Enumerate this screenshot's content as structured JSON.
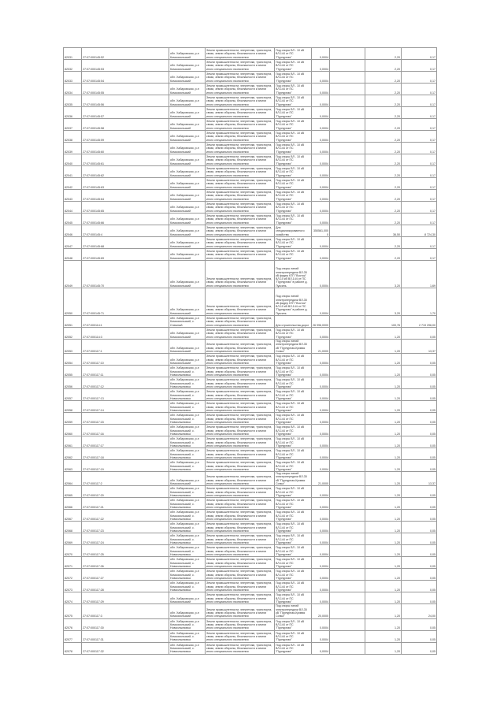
{
  "addresses": [
    "обл. Хабаровская, р-н Комсомольский",
    "обл. Хабаровская, р-н Комсомольский, с. Снежный",
    "обл. Хабаровская, р-н Комсомольский, с. Новоильиновка"
  ],
  "category": "Земли промышленности, энергетики, транспорта, связи, земли обороны, безопасности и земли иного специального назначения",
  "uses": [
    "Под опоры ВЛ - 10 кВ ВЛ-144 от ПС \"Пурпурная\"",
    "Для специализированного хозяйства",
    "Под опоры линий электропередачи ВЛ-35 кВ фидер КТП \"Восток\" ВЛ-10 кВ ВЛ-144 от ПС \"Пурпурная\" в районе д. Пуксинь",
    "Для строительства дорог",
    "Под опоры линий электропередачи ВЛ-35 кВ \"Пурпурная-Кривая Сопка\""
  ],
  "rows": [
    {
      "id": "82031",
      "cad": "27:07:000145:52",
      "a": 0,
      "u": 0,
      "area": "0,0004",
      "val": "2,20",
      "price": "0,17"
    },
    {
      "id": "82032",
      "cad": "27:07:000145:53",
      "a": 0,
      "u": 0,
      "area": "0,0004",
      "val": "2,20",
      "price": "0,17"
    },
    {
      "id": "82033",
      "cad": "27:07:000145:54",
      "a": 0,
      "u": 0,
      "area": "0,0004",
      "val": "2,20",
      "price": "0,17"
    },
    {
      "id": "82034",
      "cad": "27:07:000145:55",
      "a": 0,
      "u": 0,
      "area": "0,0004",
      "val": "2,20",
      "price": "0,17"
    },
    {
      "id": "82035",
      "cad": "27:07:000145:56",
      "a": 0,
      "u": 0,
      "area": "0,0004",
      "val": "2,20",
      "price": "0,17"
    },
    {
      "id": "82036",
      "cad": "27:07:000145:57",
      "a": 0,
      "u": 0,
      "area": "0,0004",
      "val": "2,20",
      "price": "0,17"
    },
    {
      "id": "82037",
      "cad": "27:07:000145:58",
      "a": 0,
      "u": 0,
      "area": "0,0004",
      "val": "2,20",
      "price": "0,17"
    },
    {
      "id": "82038",
      "cad": "27:07:000145:59",
      "a": 0,
      "u": 0,
      "area": "0,0004",
      "val": "2,20",
      "price": "0,17"
    },
    {
      "id": "82039",
      "cad": "27:07:000145:60",
      "a": 0,
      "u": 0,
      "area": "0,0004",
      "val": "2,20",
      "price": "0,17"
    },
    {
      "id": "82040",
      "cad": "27:07:000145:61",
      "a": 0,
      "u": 0,
      "area": "0,0004",
      "val": "2,20",
      "price": "0,17"
    },
    {
      "id": "82041",
      "cad": "27:07:000145:62",
      "a": 0,
      "u": 0,
      "area": "0,0004",
      "val": "2,20",
      "price": "0,17"
    },
    {
      "id": "82042",
      "cad": "27:07:000145:63",
      "a": 0,
      "u": 0,
      "area": "0,0004",
      "val": "2,20",
      "price": "0,17"
    },
    {
      "id": "82043",
      "cad": "27:07:000145:64",
      "a": 0,
      "u": 0,
      "area": "0,0004",
      "val": "2,20",
      "price": "0,17"
    },
    {
      "id": "82044",
      "cad": "27:07:000145:65",
      "a": 0,
      "u": 0,
      "area": "0,0004",
      "val": "2,20",
      "price": "0,17"
    },
    {
      "id": "82045",
      "cad": "27:07:000145:66",
      "a": 0,
      "u": 0,
      "area": "0,0004",
      "val": "2,20",
      "price": "0,17"
    },
    {
      "id": "82046",
      "cad": "27:07:000145:4",
      "a": 0,
      "u": 1,
      "area": "350561,0000",
      "val": "36,50",
      "price": "8 724,30"
    },
    {
      "id": "82047",
      "cad": "27:07:000145:68",
      "a": 0,
      "u": 0,
      "area": "0,0004",
      "val": "2,20",
      "price": "0,17"
    },
    {
      "id": "82048",
      "cad": "27:07:000145:69",
      "a": 0,
      "u": 0,
      "area": "0,0004",
      "val": "2,20",
      "price": "0,17"
    },
    {
      "id": "82049",
      "cad": "27:07:000145:70",
      "a": 0,
      "u": 2,
      "area": "0,0004",
      "val": "3,20",
      "price": "1,69",
      "tall": true
    },
    {
      "id": "82050",
      "cad": "27:07:000145:71",
      "a": 0,
      "u": 2,
      "area": "0,0004",
      "val": "3,20",
      "price": "1,70",
      "tall": true
    },
    {
      "id": "82051",
      "cad": "27:07:000114:1",
      "a": 1,
      "u": 3,
      "area": "26 996,0000",
      "val": "100,76",
      "price": "2 719 296,00"
    },
    {
      "id": "82052",
      "cad": "27:07:000114:3",
      "a": 0,
      "u": 0,
      "area": "0,0004",
      "val": "1,20",
      "price": "0,05"
    },
    {
      "id": "82053",
      "cad": "27:07:000117:1",
      "a": 0,
      "u": 4,
      "area": "21,0000",
      "val": "1,20",
      "price": "13,37"
    },
    {
      "id": "82054",
      "cad": "27:07:000117:10",
      "a": 0,
      "u": 0,
      "area": "0,0004",
      "val": "1,20",
      "price": "0,05"
    },
    {
      "id": "82055",
      "cad": "27:07:000117:11",
      "a": 2,
      "u": 0,
      "area": "0,0004",
      "val": "1,20",
      "price": "0,05"
    },
    {
      "id": "82056",
      "cad": "27:07:000117:12",
      "a": 2,
      "u": 0,
      "area": "0,0004",
      "val": "1,20",
      "price": "0,05"
    },
    {
      "id": "82057",
      "cad": "27:07:000117:13",
      "a": 2,
      "u": 0,
      "area": "0,0004",
      "val": "1,20",
      "price": "0,05"
    },
    {
      "id": "82058",
      "cad": "27:07:000117:14",
      "a": 2,
      "u": 0,
      "area": "0,0004",
      "val": "1,20",
      "price": "0,05"
    },
    {
      "id": "82059",
      "cad": "27:07:000117:15",
      "a": 2,
      "u": 0,
      "area": "0,0004",
      "val": "1,20",
      "price": "0,05"
    },
    {
      "id": "82060",
      "cad": "27:07:000117:16",
      "a": 2,
      "u": 0,
      "area": "0,0004",
      "val": "1,20",
      "price": "0,05"
    },
    {
      "id": "82061",
      "cad": "27:07:000117:17",
      "a": 2,
      "u": 0,
      "area": "0,0004",
      "val": "1,20",
      "price": "0,05"
    },
    {
      "id": "82062",
      "cad": "27:07:000117:18",
      "a": 2,
      "u": 0,
      "area": "0,0004",
      "val": "1,20",
      "price": "0,05"
    },
    {
      "id": "82063",
      "cad": "27:07:000117:19",
      "a": 2,
      "u": 0,
      "area": "0,0004",
      "val": "1,20",
      "price": "0,05"
    },
    {
      "id": "82064",
      "cad": "27:07:000117:2",
      "a": 0,
      "u": 4,
      "area": "21,0000",
      "val": "1,20",
      "price": "13,37"
    },
    {
      "id": "82065",
      "cad": "27:07:000117:20",
      "a": 2,
      "u": 0,
      "area": "0,0004",
      "val": "1,20",
      "price": "0,05"
    },
    {
      "id": "82066",
      "cad": "27:07:000117:21",
      "a": 2,
      "u": 0,
      "area": "0,0004",
      "val": "1,20",
      "price": "0,05"
    },
    {
      "id": "82067",
      "cad": "27:07:000117:22",
      "a": 2,
      "u": 0,
      "area": "0,0004",
      "val": "1,20",
      "price": "0,05"
    },
    {
      "id": "82068",
      "cad": "27:07:000117:23",
      "a": 2,
      "u": 0,
      "area": "0,0004",
      "val": "1,20",
      "price": "0,05"
    },
    {
      "id": "82069",
      "cad": "27:07:000117:24",
      "a": 2,
      "u": 0,
      "area": "0,0004",
      "val": "1,20",
      "price": "0,05"
    },
    {
      "id": "82070",
      "cad": "27:07:000117:25",
      "a": 2,
      "u": 0,
      "area": "0,0004",
      "val": "1,20",
      "price": "0,05"
    },
    {
      "id": "82071",
      "cad": "27:07:000117:26",
      "a": 2,
      "u": 0,
      "area": "0,0004",
      "val": "1,20",
      "price": "0,05"
    },
    {
      "id": "82072",
      "cad": "27:07:000117:27",
      "a": 2,
      "u": 0,
      "area": "0,0004",
      "val": "1,20",
      "price": "0,05"
    },
    {
      "id": "82073",
      "cad": "27:07:000117:28",
      "a": 2,
      "u": 0,
      "area": "0,0004",
      "val": "1,20",
      "price": "0,05"
    },
    {
      "id": "82074",
      "cad": "27:07:000117:29",
      "a": 0,
      "u": 0,
      "area": "0,0004",
      "val": "1,20",
      "price": "0,05"
    },
    {
      "id": "82075",
      "cad": "27:07:000117:3",
      "a": 0,
      "u": 4,
      "area": "20,0000",
      "val": "1,20",
      "price": "24,00"
    },
    {
      "id": "82076",
      "cad": "27:07:000117:30",
      "a": 2,
      "u": 0,
      "area": "0,0004",
      "val": "1,20",
      "price": "0,05"
    },
    {
      "id": "82077",
      "cad": "27:07:000117:31",
      "a": 2,
      "u": 0,
      "area": "0,0004",
      "val": "1,20",
      "price": "0,05"
    },
    {
      "id": "82078",
      "cad": "27:07:000117:32",
      "a": 2,
      "u": 0,
      "area": "0,0004",
      "val": "1,20",
      "price": "0,05"
    }
  ]
}
